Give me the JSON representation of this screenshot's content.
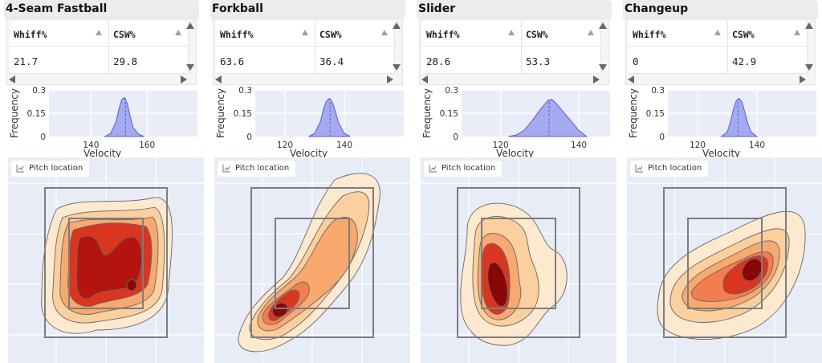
{
  "columns": {
    "whiff": "Whiff%",
    "csw": "CSW%"
  },
  "pitch_location_label": "Pitch location",
  "velocity_axis": {
    "ylabel": "Frequency",
    "xlabel": "Velocity",
    "y_ticks": [
      "0.3",
      "0.15",
      "0"
    ]
  },
  "pitches": [
    {
      "name": "4-Seam Fastball",
      "whiff": "21.7",
      "csw": "29.8",
      "chart_data": {
        "type": "area",
        "title": "",
        "xlabel": "Velocity",
        "ylabel": "Frequency",
        "x_ticks": [
          140,
          160
        ],
        "xlim": [
          125,
          178
        ],
        "ylim": [
          0,
          0.3
        ],
        "series": [
          {
            "x": [
              145,
              147,
              149,
              150,
              151,
              152,
              153,
              154,
              155,
              157,
              159
            ],
            "y": [
              0,
              0.02,
              0.1,
              0.18,
              0.24,
              0.25,
              0.21,
              0.13,
              0.06,
              0.015,
              0
            ]
          }
        ],
        "median_line": 152.3
      }
    },
    {
      "name": "Forkball",
      "whiff": "63.6",
      "csw": "36.4",
      "chart_data": {
        "type": "area",
        "title": "",
        "xlabel": "Velocity",
        "ylabel": "Frequency",
        "x_ticks": [
          120,
          140
        ],
        "xlim": [
          110,
          160
        ],
        "ylim": [
          0,
          0.3
        ],
        "series": [
          {
            "x": [
              128,
              130,
              132,
              133,
              134,
              135,
              136,
              137,
              138,
              140,
              142
            ],
            "y": [
              0,
              0.02,
              0.1,
              0.18,
              0.23,
              0.245,
              0.22,
              0.16,
              0.09,
              0.02,
              0
            ]
          }
        ],
        "median_line": 135.2
      }
    },
    {
      "name": "Slider",
      "whiff": "28.6",
      "csw": "53.3",
      "chart_data": {
        "type": "area",
        "title": "",
        "xlabel": "Velocity",
        "ylabel": "Frequency",
        "x_ticks": [
          120,
          140
        ],
        "xlim": [
          110,
          148
        ],
        "ylim": [
          0,
          0.3
        ],
        "series": [
          {
            "x": [
              122,
              124,
              126,
              128,
              130,
              131,
              132,
              133,
              134,
              135,
              136,
              138,
              140,
              142
            ],
            "y": [
              0,
              0.01,
              0.04,
              0.1,
              0.17,
              0.2,
              0.23,
              0.24,
              0.22,
              0.19,
              0.16,
              0.1,
              0.04,
              0
            ]
          }
        ],
        "median_line": 132.4
      }
    },
    {
      "name": "Changeup",
      "whiff": "0",
      "csw": "42.9",
      "chart_data": {
        "type": "area",
        "title": "",
        "xlabel": "Velocity",
        "ylabel": "Frequency",
        "x_ticks": [
          120,
          140
        ],
        "xlim": [
          110,
          160
        ],
        "ylim": [
          0,
          0.3
        ],
        "series": [
          {
            "x": [
              128,
              130,
              131,
              132,
              133,
              134,
              135,
              136,
              137,
              138,
              140
            ],
            "y": [
              0,
              0.03,
              0.09,
              0.17,
              0.23,
              0.245,
              0.22,
              0.15,
              0.08,
              0.03,
              0
            ]
          }
        ],
        "median_line": 133.6
      }
    }
  ],
  "colors": {
    "density_fill": "#a3aaf0",
    "density_stroke": "#5a5fd6",
    "density_bg": "#eaedf8",
    "heat_bg": "#e8ecf7",
    "strike_zone": "#7d7d7d",
    "heat_levels": [
      "#fde9d0",
      "#fbcf9e",
      "#f9a86f",
      "#f47d50",
      "#d9351f",
      "#8a0707"
    ]
  }
}
